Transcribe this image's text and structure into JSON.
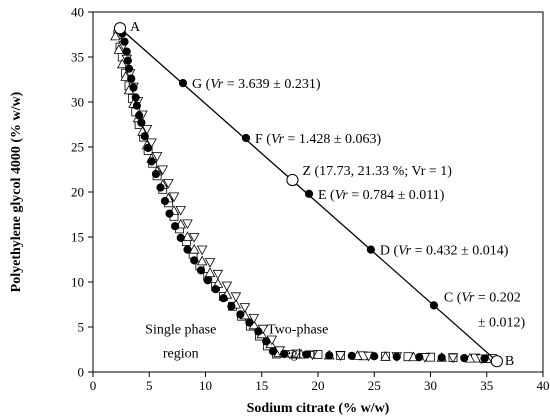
{
  "chart_data": {
    "type": "scatter",
    "xlabel": "Sodium citrate (% w/w)",
    "ylabel": "Polyethylene glycol 4000 (% w/w)",
    "xlim": [
      0,
      40
    ],
    "ylim": [
      0,
      40
    ],
    "x_ticks": [
      "0",
      "5",
      "10",
      "15",
      "20",
      "25",
      "30",
      "35",
      "40"
    ],
    "y_ticks": [
      "0",
      "5",
      "10",
      "15",
      "20",
      "25",
      "30",
      "35",
      "40"
    ],
    "grid": false,
    "region_labels": [
      {
        "lines": [
          "Single phase",
          "region"
        ],
        "x": 7.8,
        "y": 4.3
      },
      {
        "lines": [
          "Two-phase",
          "region"
        ],
        "x": 18.2,
        "y": 4.3
      }
    ],
    "binodal_series": [
      {
        "marker": "filled-circle",
        "points": [
          [
            2.6,
            37.6
          ],
          [
            2.8,
            36.7
          ],
          [
            3.0,
            35.6
          ],
          [
            3.1,
            34.6
          ],
          [
            3.2,
            33.7
          ],
          [
            3.4,
            32.6
          ],
          [
            3.6,
            31.6
          ],
          [
            3.8,
            30.5
          ],
          [
            3.9,
            29.6
          ],
          [
            4.1,
            28.5
          ],
          [
            4.3,
            27.7
          ],
          [
            4.6,
            26.2
          ],
          [
            4.9,
            24.9
          ],
          [
            5.2,
            23.4
          ],
          [
            5.6,
            22.0
          ],
          [
            6.0,
            20.5
          ],
          [
            6.4,
            19.0
          ],
          [
            6.8,
            17.6
          ],
          [
            7.3,
            16.2
          ],
          [
            7.8,
            14.9
          ],
          [
            8.4,
            13.6
          ],
          [
            9.0,
            12.4
          ],
          [
            9.6,
            11.3
          ],
          [
            10.2,
            10.2
          ],
          [
            10.9,
            9.2
          ],
          [
            11.6,
            8.2
          ],
          [
            12.3,
            7.3
          ],
          [
            13.1,
            6.4
          ],
          [
            13.9,
            5.5
          ],
          [
            14.7,
            4.5
          ],
          [
            15.4,
            3.4
          ],
          [
            16.0,
            2.3
          ],
          [
            17.0,
            2.0
          ],
          [
            19.0,
            1.95
          ],
          [
            21.0,
            1.85
          ],
          [
            23.0,
            1.8
          ],
          [
            25.0,
            1.75
          ],
          [
            27.0,
            1.7
          ],
          [
            29.0,
            1.65
          ],
          [
            31.0,
            1.6
          ],
          [
            33.0,
            1.55
          ],
          [
            34.8,
            1.5
          ]
        ]
      },
      {
        "marker": "open-square",
        "points": [
          [
            2.2,
            37.5
          ],
          [
            2.4,
            36.1
          ],
          [
            2.6,
            35.0
          ],
          [
            2.9,
            33.2
          ],
          [
            3.2,
            31.8
          ],
          [
            3.5,
            30.4
          ],
          [
            3.8,
            28.9
          ],
          [
            4.1,
            27.5
          ],
          [
            4.5,
            26.1
          ],
          [
            4.9,
            24.6
          ],
          [
            5.3,
            23.2
          ],
          [
            5.7,
            21.8
          ],
          [
            6.2,
            20.3
          ],
          [
            6.7,
            18.8
          ],
          [
            7.2,
            17.3
          ],
          [
            7.7,
            15.9
          ],
          [
            8.3,
            14.5
          ],
          [
            8.9,
            13.1
          ],
          [
            9.5,
            11.8
          ],
          [
            10.2,
            10.6
          ],
          [
            10.9,
            9.5
          ],
          [
            11.6,
            8.4
          ],
          [
            12.4,
            7.3
          ],
          [
            13.2,
            6.2
          ],
          [
            14.0,
            5.1
          ],
          [
            14.8,
            4.0
          ],
          [
            15.5,
            2.9
          ],
          [
            16.3,
            2.0
          ],
          [
            18.0,
            2.0
          ],
          [
            20.0,
            1.95
          ],
          [
            22.0,
            1.85
          ],
          [
            24.0,
            1.8
          ],
          [
            26.0,
            1.75
          ],
          [
            28.0,
            1.7
          ],
          [
            30.0,
            1.65
          ],
          [
            32.0,
            1.6
          ],
          [
            34.0,
            1.55
          ],
          [
            35.5,
            1.5
          ]
        ]
      },
      {
        "marker": "open-triangle",
        "points": [
          [
            2.0,
            37.3
          ],
          [
            2.3,
            35.8
          ],
          [
            2.6,
            34.2
          ],
          [
            2.9,
            32.8
          ],
          [
            3.2,
            31.3
          ],
          [
            3.6,
            29.8
          ],
          [
            4.0,
            28.2
          ],
          [
            4.4,
            26.7
          ],
          [
            4.8,
            25.2
          ],
          [
            5.2,
            23.7
          ],
          [
            5.7,
            22.3
          ],
          [
            6.2,
            20.8
          ],
          [
            6.7,
            19.3
          ],
          [
            7.2,
            17.9
          ],
          [
            7.8,
            16.4
          ],
          [
            8.4,
            15.0
          ],
          [
            9.0,
            13.6
          ],
          [
            9.7,
            12.3
          ],
          [
            10.4,
            11.0
          ],
          [
            11.1,
            9.8
          ],
          [
            11.9,
            8.6
          ],
          [
            12.7,
            7.5
          ],
          [
            13.5,
            6.3
          ],
          [
            14.3,
            5.2
          ],
          [
            15.0,
            4.2
          ],
          [
            15.8,
            3.1
          ],
          [
            16.5,
            2.1
          ],
          [
            18.5,
            1.95
          ],
          [
            21.0,
            1.85
          ],
          [
            23.5,
            1.8
          ],
          [
            26.0,
            1.7
          ],
          [
            28.5,
            1.65
          ],
          [
            31.0,
            1.6
          ],
          [
            33.5,
            1.5
          ],
          [
            35.0,
            1.45
          ]
        ]
      },
      {
        "marker": "open-inverted-triangle",
        "points": [
          [
            2.4,
            37.8
          ],
          [
            2.7,
            36.3
          ],
          [
            3.0,
            34.8
          ],
          [
            3.3,
            33.2
          ],
          [
            3.6,
            31.7
          ],
          [
            4.0,
            30.1
          ],
          [
            4.4,
            28.6
          ],
          [
            4.8,
            27.0
          ],
          [
            5.2,
            25.5
          ],
          [
            5.7,
            24.0
          ],
          [
            6.2,
            22.5
          ],
          [
            6.7,
            21.0
          ],
          [
            7.2,
            19.5
          ],
          [
            7.8,
            18.0
          ],
          [
            8.4,
            16.5
          ],
          [
            9.0,
            15.0
          ],
          [
            9.7,
            13.6
          ],
          [
            10.4,
            12.2
          ],
          [
            11.1,
            10.9
          ],
          [
            11.9,
            9.6
          ],
          [
            12.7,
            8.4
          ],
          [
            13.5,
            7.2
          ],
          [
            14.3,
            6.0
          ],
          [
            15.1,
            4.8
          ],
          [
            15.9,
            3.6
          ],
          [
            16.6,
            2.4
          ],
          [
            17.5,
            2.0
          ],
          [
            19.5,
            1.95
          ],
          [
            22.0,
            1.85
          ],
          [
            24.5,
            1.8
          ],
          [
            27.0,
            1.75
          ],
          [
            29.5,
            1.65
          ],
          [
            32.0,
            1.6
          ],
          [
            34.5,
            1.5
          ]
        ]
      }
    ],
    "tie_line": {
      "from": "A",
      "to": "B"
    },
    "points": [
      {
        "id": "A",
        "x": 2.4,
        "y": 38.2,
        "marker": "open-circle",
        "label": "A"
      },
      {
        "id": "G",
        "x": 8.0,
        "y": 32.1,
        "marker": "filled-circle",
        "label": "G (Vr = 3.639 ± 0.231)"
      },
      {
        "id": "F",
        "x": 13.6,
        "y": 26.0,
        "marker": "filled-circle",
        "label": "F (Vr = 1.428 ± 0.063)"
      },
      {
        "id": "Z",
        "x": 17.73,
        "y": 21.33,
        "marker": "open-circle",
        "label": "Z (17.73, 21.33 %; Vr = 1)"
      },
      {
        "id": "E",
        "x": 19.2,
        "y": 19.8,
        "marker": "filled-circle",
        "label": "E (Vr = 0.784 ± 0.011)"
      },
      {
        "id": "D",
        "x": 24.7,
        "y": 13.6,
        "marker": "filled-circle",
        "label": "D (Vr = 0.432 ± 0.014)"
      },
      {
        "id": "C",
        "x": 30.3,
        "y": 7.4,
        "marker": "filled-circle",
        "label": "C (Vr = 0.202",
        "label2": "± 0.012)"
      },
      {
        "id": "B",
        "x": 35.9,
        "y": 1.2,
        "marker": "open-circle",
        "label": "B"
      }
    ]
  }
}
